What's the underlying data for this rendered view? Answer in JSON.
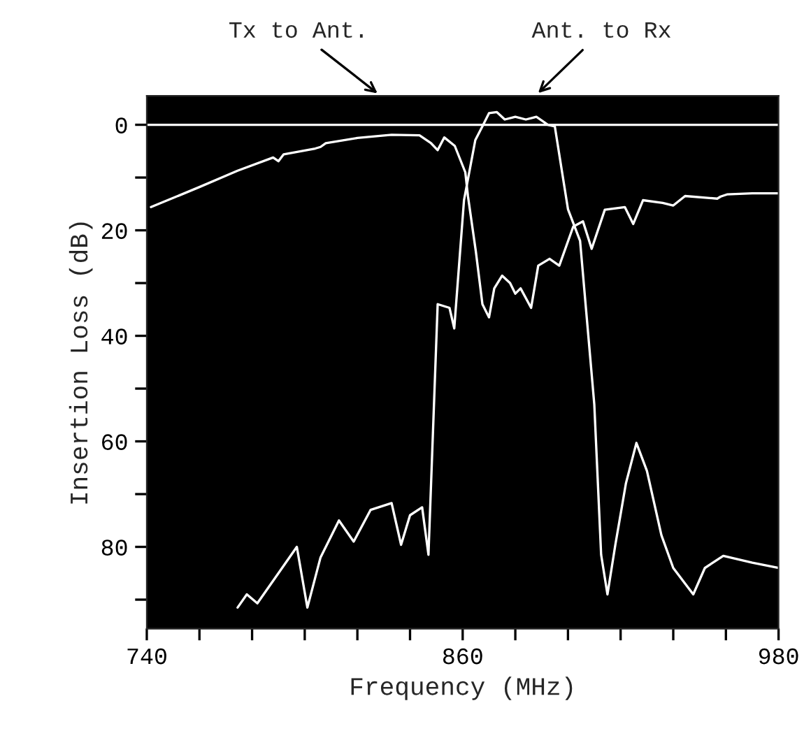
{
  "chart_data": {
    "type": "line",
    "xlabel": "Frequency (MHz)",
    "ylabel": "Insertion Loss (dB)",
    "xlim": [
      740,
      980
    ],
    "ylim": [
      95.5,
      -5.5
    ],
    "xticks": [
      740,
      {
        "value": 760,
        "label": null
      },
      {
        "value": 780,
        "label": null
      },
      {
        "value": 800,
        "label": null
      },
      {
        "value": 820,
        "label": null
      },
      {
        "value": 840,
        "label": null
      },
      860,
      {
        "value": 880,
        "label": null
      },
      {
        "value": 900,
        "label": null
      },
      {
        "value": 920,
        "label": null
      },
      {
        "value": 940,
        "label": null
      },
      {
        "value": 960,
        "label": null
      },
      980
    ],
    "yticks": [
      0,
      {
        "value": 10,
        "label": null
      },
      20,
      {
        "value": 30,
        "label": null
      },
      40,
      {
        "value": 50,
        "label": null
      },
      60,
      {
        "value": 70,
        "label": null
      },
      80,
      {
        "value": 90,
        "label": null
      }
    ],
    "grid": false,
    "line_style": "solid",
    "series": [
      {
        "color": "#ffffff",
        "x": [
          740,
          980
        ],
        "values": [
          0,
          0
        ]
      },
      {
        "color": "#ffffff",
        "x": [
          741.6,
          760,
          774.5,
          788,
          790,
          792,
          804,
          806,
          808,
          820,
          833,
          843.6,
          848,
          850.5,
          853,
          857,
          861,
          862,
          865,
          867.5,
          870,
          872,
          875,
          878,
          880,
          882,
          886,
          888.7,
          893,
          896.7,
          902,
          905.7,
          909,
          914,
          921.6,
          924.8,
          928.5,
          936,
          940,
          944.5,
          956.7,
          958,
          960.4,
          970,
          980
        ],
        "values": [
          15.6,
          11.8,
          8.7,
          6.2,
          6.9,
          5.6,
          4.5,
          4.2,
          3.5,
          2.5,
          1.9,
          2,
          3.5,
          4.8,
          2.4,
          4,
          9,
          13.5,
          24,
          34,
          36.5,
          31,
          28.6,
          30,
          32,
          31,
          34.7,
          26.7,
          25.4,
          26.7,
          19.3,
          18.3,
          23.5,
          16.1,
          15.6,
          18.8,
          14.3,
          14.8,
          15.3,
          13.5,
          14,
          13.6,
          13.2,
          13,
          13
        ]
      },
      {
        "color": "#ffffff",
        "x": [
          774.5,
          778,
          782,
          790,
          797,
          801,
          806,
          813,
          818.6,
          825,
          833,
          836.6,
          840,
          844.6,
          847,
          850.5,
          855,
          856.8,
          860.5,
          864.8,
          867.5,
          870,
          873,
          876,
          880,
          884,
          888,
          892.4,
          895,
          900,
          904.6,
          910,
          912.6,
          915,
          918,
          922,
          926,
          930,
          935.5,
          940,
          947.6,
          952,
          959,
          970,
          980
        ],
        "values": [
          91.5,
          89,
          90.7,
          85,
          80,
          91.5,
          82,
          75,
          79,
          73,
          71.7,
          79.6,
          74,
          72.5,
          81.5,
          34,
          34.7,
          38.6,
          14.3,
          2.9,
          0.3,
          -2.2,
          -2.4,
          -1,
          -1.5,
          -1,
          -1.5,
          0,
          0.3,
          16,
          22,
          53,
          81.5,
          89,
          79.6,
          68,
          60.3,
          65.6,
          77.8,
          84,
          89,
          84,
          81.7,
          83,
          84
        ]
      }
    ],
    "annotations": [
      "Tx to Ant.",
      "Ant. to Rx"
    ]
  }
}
